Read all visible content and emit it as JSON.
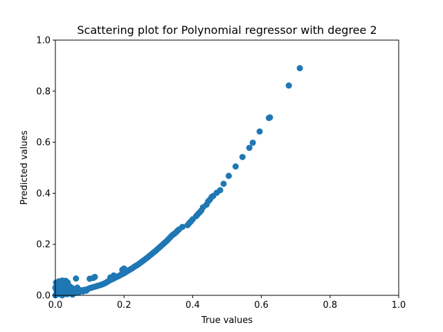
{
  "chart_data": {
    "type": "scatter",
    "title": "Scattering plot for Polynomial regressor with degree 2",
    "xlabel": "True values",
    "ylabel": "Predicted values",
    "xlim": [
      0,
      1
    ],
    "ylim": [
      0,
      1
    ],
    "xticks": [
      "0.0",
      "0.2",
      "0.4",
      "0.6",
      "0.8",
      "1.0"
    ],
    "yticks": [
      "0.0",
      "0.2",
      "0.4",
      "0.6",
      "0.8",
      "1.0"
    ],
    "grid": false,
    "marker_color": "#1f77b4",
    "series": [
      {
        "x": [
          0.0,
          0.0,
          0.002,
          0.004,
          0.006,
          0.008,
          0.01,
          0.012,
          0.014,
          0.016,
          0.018,
          0.02,
          0.022,
          0.024,
          0.026,
          0.028,
          0.03,
          0.032,
          0.034,
          0.036,
          0.038,
          0.04,
          0.042,
          0.045,
          0.048,
          0.05,
          0.053,
          0.056,
          0.06,
          0.064,
          0.068,
          0.072,
          0.076,
          0.08,
          0.085,
          0.09,
          0.005,
          0.01,
          0.015,
          0.02,
          0.025,
          0.03,
          0.035,
          0.04,
          0.045,
          0.05,
          0.003,
          0.008,
          0.012,
          0.018,
          0.022,
          0.028,
          0.033,
          0.038,
          0.043,
          0.047,
          0.01,
          0.02,
          0.03,
          0.04,
          0.06,
          0.095,
          0.1,
          0.105,
          0.11,
          0.115,
          0.12,
          0.125,
          0.13,
          0.135,
          0.14,
          0.145,
          0.15,
          0.155,
          0.16,
          0.165,
          0.17,
          0.175,
          0.18,
          0.185,
          0.19,
          0.195,
          0.2,
          0.205,
          0.21,
          0.215,
          0.22,
          0.225,
          0.23,
          0.235,
          0.24,
          0.245,
          0.25,
          0.255,
          0.26,
          0.265,
          0.27,
          0.275,
          0.28,
          0.285,
          0.29,
          0.295,
          0.3,
          0.305,
          0.31,
          0.315,
          0.32,
          0.325,
          0.33,
          0.335,
          0.34,
          0.345,
          0.35,
          0.355,
          0.36,
          0.37,
          0.385,
          0.39,
          0.395,
          0.4,
          0.41,
          0.415,
          0.42,
          0.425,
          0.43,
          0.44,
          0.445,
          0.45,
          0.455,
          0.46,
          0.47,
          0.48,
          0.49,
          0.505,
          0.525,
          0.545,
          0.565,
          0.575,
          0.595,
          0.622,
          0.625,
          0.68,
          0.712,
          0.1,
          0.11,
          0.115,
          0.16,
          0.17,
          0.2,
          0.195
        ],
        "y": [
          0.0,
          0.03,
          0.05,
          0.02,
          0.01,
          0.04,
          0.005,
          0.025,
          0.035,
          0.015,
          0.045,
          0.008,
          0.03,
          0.055,
          0.012,
          0.022,
          0.04,
          0.005,
          0.018,
          0.05,
          0.01,
          0.028,
          0.035,
          0.012,
          0.02,
          0.008,
          0.015,
          0.025,
          0.01,
          0.03,
          0.012,
          0.018,
          0.02,
          0.015,
          0.022,
          0.018,
          0.01,
          0.02,
          0.03,
          0.0,
          0.015,
          0.025,
          0.005,
          0.012,
          0.028,
          0.003,
          0.02,
          0.03,
          0.04,
          0.05,
          0.035,
          0.045,
          0.01,
          0.025,
          0.015,
          0.03,
          0.055,
          0.058,
          0.057,
          0.035,
          0.066,
          0.025,
          0.028,
          0.03,
          0.032,
          0.034,
          0.036,
          0.038,
          0.04,
          0.042,
          0.045,
          0.048,
          0.052,
          0.056,
          0.06,
          0.063,
          0.066,
          0.07,
          0.073,
          0.076,
          0.08,
          0.083,
          0.087,
          0.091,
          0.095,
          0.099,
          0.103,
          0.107,
          0.112,
          0.116,
          0.12,
          0.125,
          0.13,
          0.135,
          0.14,
          0.145,
          0.15,
          0.156,
          0.161,
          0.167,
          0.172,
          0.178,
          0.184,
          0.19,
          0.196,
          0.202,
          0.208,
          0.214,
          0.221,
          0.228,
          0.235,
          0.24,
          0.245,
          0.252,
          0.258,
          0.268,
          0.275,
          0.283,
          0.29,
          0.298,
          0.31,
          0.318,
          0.325,
          0.332,
          0.345,
          0.355,
          0.368,
          0.375,
          0.385,
          0.39,
          0.402,
          0.412,
          0.437,
          0.468,
          0.505,
          0.542,
          0.578,
          0.598,
          0.642,
          0.695,
          0.697,
          0.822,
          0.89,
          0.065,
          0.068,
          0.072,
          0.07,
          0.078,
          0.105,
          0.1
        ]
      }
    ]
  }
}
